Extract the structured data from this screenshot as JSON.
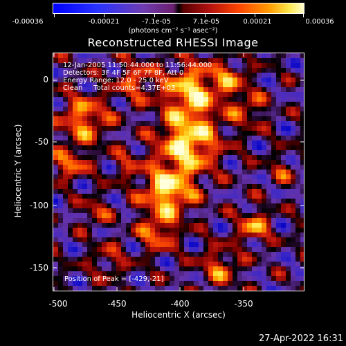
{
  "colorbar": {
    "tick_labels": [
      "-0.00036",
      "-0.00021",
      "-7.1e-05",
      "7.1e-05",
      "0.00021",
      "0.00036"
    ],
    "units": "(photons cm⁻² s⁻¹ asec⁻²)",
    "colormap": "blue-black-red-yellow-white"
  },
  "title": "Reconstructed RHESSI Image",
  "info": {
    "time_range": "12-Jan-2005 11:50:44.000 to 11:56:44.000",
    "detectors": "Detectors: 3F 4F 5F 6F 7F 8F, Att 0",
    "energy": "Energy Range: 12.0 - 25.0 keV",
    "clean": "Clean     Total counts=4.37E+03",
    "peak": "Position of Peak = [-429,-21]"
  },
  "axes": {
    "x_label": "Heliocentric X (arcsec)",
    "y_label": "Heliocentric Y (arcsec)",
    "x_ticks": [
      "-500",
      "-450",
      "-400",
      "-350"
    ],
    "y_ticks": [
      "0",
      "-50",
      "-100",
      "-150"
    ]
  },
  "footer": {
    "date": "27-Apr-2022 16:31"
  }
}
